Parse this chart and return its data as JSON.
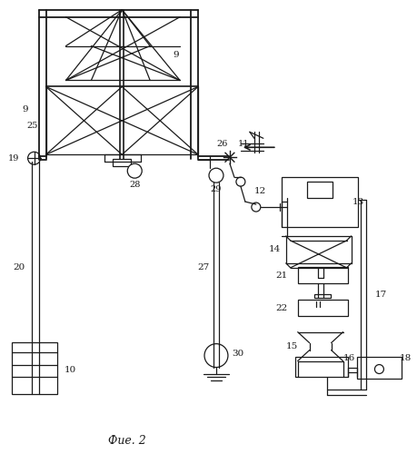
{
  "caption": "Фие. 2",
  "bg_color": "#ffffff",
  "line_color": "#1a1a1a",
  "figsize": [
    4.59,
    5.0
  ],
  "dpi": 100
}
